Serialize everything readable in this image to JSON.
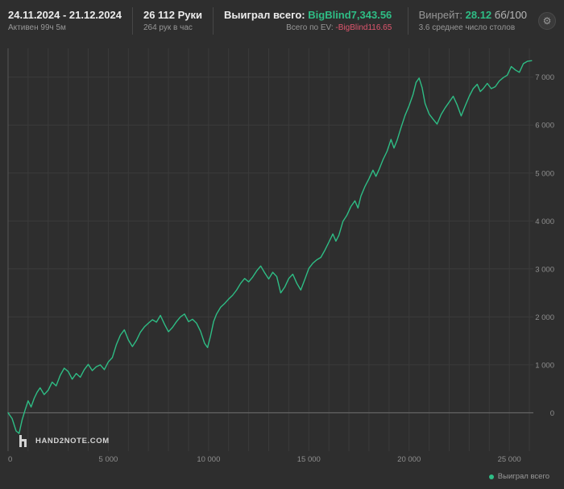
{
  "header": {
    "date_range": "24.11.2024 - 21.12.2024",
    "active_time": "Активен 99ч 5м",
    "hands": "26 112 Руки",
    "hands_per_hour": "264 рук в час",
    "won_label": "Выиграл всего:",
    "won_value": "BigBlind7,343.56",
    "ev_label": "Всего по EV:",
    "ev_value": "-BigBlind116.65",
    "winrate_label": "Винрейт:",
    "winrate_value": "28.12",
    "winrate_unit": "бб/100",
    "avg_tables": "3.6 среднее число столов",
    "settings_glyph": "⚙"
  },
  "watermark": "HAND2NOTE.COM",
  "legend": {
    "label": "Выиграл всего",
    "color": "#2ebd85"
  },
  "colors": {
    "background": "#2e2e2e",
    "grid": "#3b3b3b",
    "line_green": "#2ebd85",
    "text_green": "#2ebd85",
    "text_red": "#e0566e",
    "text_gray": "#979797",
    "text_white": "#ececec"
  },
  "chart_data": {
    "type": "line",
    "title": "",
    "xlabel": "",
    "ylabel": "",
    "legend_position": "bottom-right",
    "grid": true,
    "xlim": [
      0,
      26200
    ],
    "ylim": [
      -800,
      7600
    ],
    "x_grid_step": 1000,
    "x_ticks": [
      0,
      5000,
      10000,
      15000,
      20000,
      25000
    ],
    "y_ticks": [
      0,
      1000,
      2000,
      3000,
      4000,
      5000,
      6000,
      7000
    ],
    "series": [
      {
        "name": "Выиграл всего",
        "color": "#2ebd85",
        "points": [
          [
            0,
            0
          ],
          [
            200,
            -120
          ],
          [
            400,
            -380
          ],
          [
            550,
            -430
          ],
          [
            700,
            -150
          ],
          [
            850,
            60
          ],
          [
            1000,
            250
          ],
          [
            1150,
            120
          ],
          [
            1300,
            300
          ],
          [
            1450,
            430
          ],
          [
            1600,
            520
          ],
          [
            1800,
            380
          ],
          [
            2000,
            470
          ],
          [
            2200,
            640
          ],
          [
            2400,
            560
          ],
          [
            2600,
            780
          ],
          [
            2800,
            930
          ],
          [
            3000,
            860
          ],
          [
            3200,
            700
          ],
          [
            3400,
            820
          ],
          [
            3600,
            740
          ],
          [
            3800,
            900
          ],
          [
            4000,
            1010
          ],
          [
            4200,
            880
          ],
          [
            4400,
            960
          ],
          [
            4600,
            1000
          ],
          [
            4800,
            900
          ],
          [
            5000,
            1060
          ],
          [
            5200,
            1150
          ],
          [
            5400,
            1420
          ],
          [
            5600,
            1620
          ],
          [
            5800,
            1730
          ],
          [
            6000,
            1520
          ],
          [
            6200,
            1380
          ],
          [
            6400,
            1510
          ],
          [
            6600,
            1680
          ],
          [
            6800,
            1790
          ],
          [
            7000,
            1870
          ],
          [
            7200,
            1940
          ],
          [
            7400,
            1890
          ],
          [
            7600,
            2030
          ],
          [
            7800,
            1850
          ],
          [
            8000,
            1690
          ],
          [
            8200,
            1780
          ],
          [
            8400,
            1900
          ],
          [
            8600,
            2000
          ],
          [
            8800,
            2060
          ],
          [
            9000,
            1900
          ],
          [
            9200,
            1950
          ],
          [
            9400,
            1870
          ],
          [
            9600,
            1700
          ],
          [
            9800,
            1450
          ],
          [
            9950,
            1360
          ],
          [
            10100,
            1600
          ],
          [
            10250,
            1900
          ],
          [
            10400,
            2060
          ],
          [
            10600,
            2200
          ],
          [
            10800,
            2280
          ],
          [
            11000,
            2370
          ],
          [
            11200,
            2450
          ],
          [
            11400,
            2560
          ],
          [
            11600,
            2700
          ],
          [
            11800,
            2800
          ],
          [
            12000,
            2730
          ],
          [
            12200,
            2830
          ],
          [
            12400,
            2960
          ],
          [
            12600,
            3060
          ],
          [
            12800,
            2920
          ],
          [
            13000,
            2790
          ],
          [
            13200,
            2930
          ],
          [
            13400,
            2840
          ],
          [
            13600,
            2500
          ],
          [
            13800,
            2620
          ],
          [
            14000,
            2800
          ],
          [
            14200,
            2890
          ],
          [
            14400,
            2700
          ],
          [
            14600,
            2560
          ],
          [
            14800,
            2780
          ],
          [
            15000,
            3010
          ],
          [
            15200,
            3120
          ],
          [
            15400,
            3190
          ],
          [
            15600,
            3240
          ],
          [
            15800,
            3390
          ],
          [
            16000,
            3560
          ],
          [
            16200,
            3730
          ],
          [
            16350,
            3580
          ],
          [
            16500,
            3700
          ],
          [
            16700,
            3990
          ],
          [
            16900,
            4120
          ],
          [
            17100,
            4300
          ],
          [
            17300,
            4420
          ],
          [
            17450,
            4270
          ],
          [
            17600,
            4520
          ],
          [
            17800,
            4720
          ],
          [
            18000,
            4880
          ],
          [
            18200,
            5060
          ],
          [
            18350,
            4930
          ],
          [
            18500,
            5070
          ],
          [
            18700,
            5280
          ],
          [
            18900,
            5450
          ],
          [
            19100,
            5700
          ],
          [
            19250,
            5520
          ],
          [
            19400,
            5680
          ],
          [
            19600,
            5950
          ],
          [
            19800,
            6200
          ],
          [
            20000,
            6400
          ],
          [
            20200,
            6640
          ],
          [
            20350,
            6890
          ],
          [
            20500,
            6980
          ],
          [
            20650,
            6780
          ],
          [
            20800,
            6450
          ],
          [
            21000,
            6230
          ],
          [
            21200,
            6120
          ],
          [
            21400,
            6020
          ],
          [
            21600,
            6220
          ],
          [
            21800,
            6360
          ],
          [
            22000,
            6480
          ],
          [
            22200,
            6600
          ],
          [
            22400,
            6420
          ],
          [
            22600,
            6190
          ],
          [
            22800,
            6400
          ],
          [
            23000,
            6600
          ],
          [
            23200,
            6760
          ],
          [
            23400,
            6850
          ],
          [
            23550,
            6700
          ],
          [
            23700,
            6760
          ],
          [
            23900,
            6870
          ],
          [
            24100,
            6760
          ],
          [
            24300,
            6800
          ],
          [
            24500,
            6920
          ],
          [
            24700,
            6990
          ],
          [
            24900,
            7040
          ],
          [
            25100,
            7220
          ],
          [
            25300,
            7150
          ],
          [
            25500,
            7100
          ],
          [
            25700,
            7280
          ],
          [
            25900,
            7330
          ],
          [
            26112,
            7343.56
          ]
        ]
      }
    ]
  }
}
